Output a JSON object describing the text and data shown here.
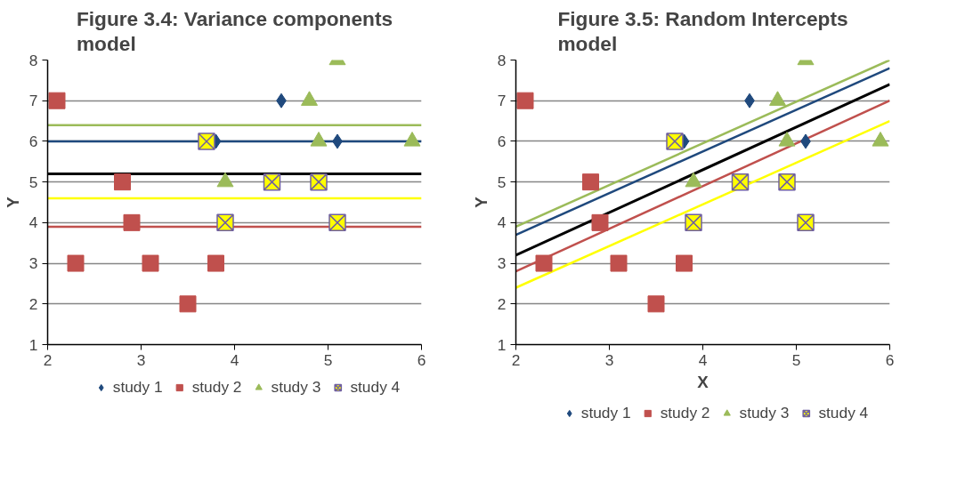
{
  "chart_data": [
    {
      "type": "scatter",
      "title": "Figure 3.4: Variance components model",
      "ylabel": "Y",
      "xlim": [
        2,
        6
      ],
      "ylim": [
        1,
        8
      ],
      "xticks": [
        2,
        3,
        4,
        5,
        6
      ],
      "yticks": [
        1,
        2,
        3,
        4,
        5,
        6,
        7,
        8
      ],
      "grid": "y",
      "legend": "bottom",
      "series": [
        {
          "type": "line",
          "color": "#9bbb59",
          "x": [
            2.0,
            6.0
          ],
          "values": [
            6.4,
            6.4
          ]
        },
        {
          "type": "line",
          "color": "#1f497d",
          "x": [
            2.0,
            6.0
          ],
          "values": [
            6.0,
            6.0
          ]
        },
        {
          "type": "line",
          "color": "#000000",
          "x": [
            2.0,
            6.0
          ],
          "values": [
            5.2,
            5.2
          ]
        },
        {
          "type": "line",
          "color": "#ffff00",
          "x": [
            2.0,
            6.0
          ],
          "values": [
            4.6,
            4.6
          ]
        },
        {
          "type": "line",
          "color": "#c0504d",
          "x": [
            2.0,
            6.0
          ],
          "values": [
            3.9,
            3.9
          ]
        },
        {
          "name": "study 1",
          "marker": "diamond",
          "color": "#1f497d",
          "x": [
            4.5,
            3.8,
            5.1
          ],
          "values": [
            7,
            6,
            6
          ]
        },
        {
          "name": "study 2",
          "marker": "square",
          "color": "#c0504d",
          "x": [
            2.1,
            2.8,
            2.9,
            2.3,
            3.1,
            3.8,
            3.5
          ],
          "values": [
            7,
            5,
            4,
            3,
            3,
            3,
            2
          ]
        },
        {
          "name": "study 3",
          "marker": "triangle",
          "color": "#9bbb59",
          "x": [
            5.1,
            4.8,
            4.9,
            5.9,
            3.9
          ],
          "values": [
            8,
            7,
            6,
            6,
            5
          ]
        },
        {
          "name": "study 4",
          "marker": "cross",
          "color": "#ffff00",
          "x": [
            3.7,
            4.4,
            4.9,
            3.9,
            5.1
          ],
          "values": [
            6,
            5,
            5,
            4,
            4
          ]
        }
      ]
    },
    {
      "type": "scatter",
      "title": "Figure 3.5: Random Intercepts model",
      "xlabel": "X",
      "ylabel": "Y",
      "xlim": [
        2,
        6
      ],
      "ylim": [
        1,
        8
      ],
      "xticks": [
        2,
        3,
        4,
        5,
        6
      ],
      "yticks": [
        1,
        2,
        3,
        4,
        5,
        6,
        7,
        8
      ],
      "grid": "y",
      "legend": "bottom",
      "series": [
        {
          "type": "line",
          "color": "#9bbb59",
          "x": [
            2.0,
            6.0
          ],
          "values": [
            3.9,
            8.0
          ]
        },
        {
          "type": "line",
          "color": "#1f497d",
          "x": [
            2.0,
            6.0
          ],
          "values": [
            3.7,
            7.8
          ]
        },
        {
          "type": "line",
          "color": "#000000",
          "x": [
            2.0,
            6.0
          ],
          "values": [
            3.2,
            7.4
          ]
        },
        {
          "type": "line",
          "color": "#c0504d",
          "x": [
            2.0,
            6.0
          ],
          "values": [
            2.8,
            7.0
          ]
        },
        {
          "type": "line",
          "color": "#ffff00",
          "x": [
            2.0,
            6.0
          ],
          "values": [
            2.4,
            6.5
          ]
        },
        {
          "name": "study 1",
          "marker": "diamond",
          "color": "#1f497d",
          "x": [
            4.5,
            3.8,
            5.1
          ],
          "values": [
            7,
            6,
            6
          ]
        },
        {
          "name": "study 2",
          "marker": "square",
          "color": "#c0504d",
          "x": [
            2.1,
            2.8,
            2.9,
            2.3,
            3.1,
            3.8,
            3.5
          ],
          "values": [
            7,
            5,
            4,
            3,
            3,
            3,
            2
          ]
        },
        {
          "name": "study 3",
          "marker": "triangle",
          "color": "#9bbb59",
          "x": [
            5.1,
            4.8,
            4.9,
            5.9,
            3.9
          ],
          "values": [
            8,
            7,
            6,
            6,
            5
          ]
        },
        {
          "name": "study 4",
          "marker": "cross",
          "color": "#ffff00",
          "x": [
            3.7,
            4.4,
            4.9,
            3.9,
            5.1
          ],
          "values": [
            6,
            5,
            5,
            4,
            4
          ]
        }
      ]
    }
  ]
}
